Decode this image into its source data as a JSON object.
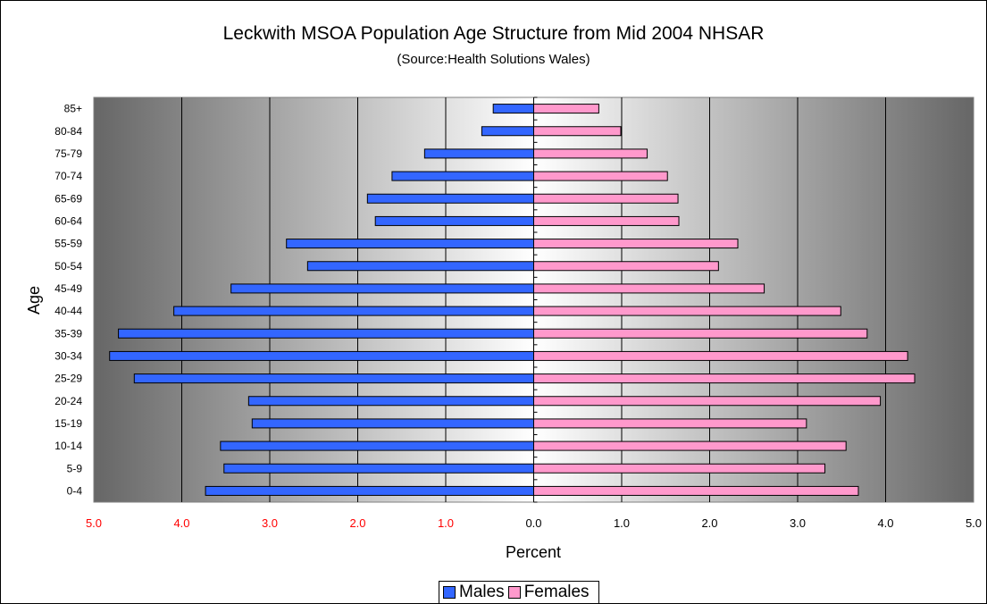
{
  "chart_data": {
    "type": "bar",
    "orientation": "horizontal",
    "title": "Leckwith MSOA Population Age Structure from Mid 2004 NHSAR",
    "subtitle": "(Source:Health Solutions Wales)",
    "xlabel": "Percent",
    "ylabel": "Age",
    "categories": [
      "0-4",
      "5-9",
      "10-14",
      "15-19",
      "20-24",
      "25-29",
      "30-34",
      "35-39",
      "40-44",
      "45-49",
      "50-54",
      "55-59",
      "60-64",
      "65-69",
      "70-74",
      "75-79",
      "80-84",
      "85+"
    ],
    "x_tick_labels": [
      "5.0",
      "4.0",
      "3.0",
      "2.0",
      "1.0",
      "0.0",
      "1.0",
      "2.0",
      "3.0",
      "4.0",
      "5.0"
    ],
    "xlim": [
      -5,
      5
    ],
    "grid": true,
    "legend_position": "bottom",
    "series": [
      {
        "name": "Males",
        "color": "#3366ff",
        "values": [
          3.73,
          3.52,
          3.56,
          3.2,
          3.24,
          4.54,
          4.82,
          4.72,
          4.09,
          3.44,
          2.57,
          2.81,
          1.8,
          1.89,
          1.61,
          1.24,
          0.59,
          0.46
        ]
      },
      {
        "name": "Females",
        "color": "#ff99cc",
        "values": [
          3.69,
          3.31,
          3.55,
          3.1,
          3.94,
          4.33,
          4.25,
          3.79,
          3.49,
          2.62,
          2.1,
          2.32,
          1.65,
          1.64,
          1.52,
          1.29,
          0.99,
          0.74
        ]
      }
    ],
    "colors": {
      "left_ticks": "#ff0000",
      "right_ticks": "#000000"
    }
  }
}
